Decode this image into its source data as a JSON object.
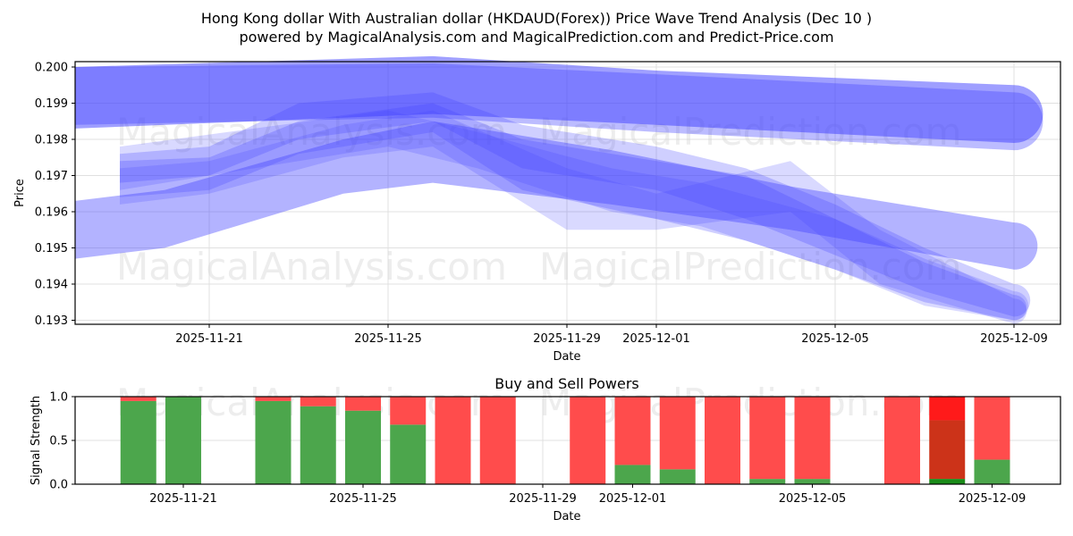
{
  "header": {
    "title": "Hong Kong dollar With Australian dollar (HKDAUD(Forex)) Price Wave Trend Analysis (Dec 10 )",
    "subtitle": "powered by MagicalAnalysis.com and MagicalPrediction.com and Predict-Price.com"
  },
  "watermarks": [
    "MagicalAnalysis.com",
    "MagicalPrediction.com"
  ],
  "colors": {
    "wave": "#4040ff",
    "buy": "#4ca64c",
    "sell": "#ff4c4c",
    "sell_strong": "#ff1a1a",
    "overlap": "#cc3319",
    "buy_dark": "#1a8c1a"
  },
  "chart_data": [
    {
      "type": "area",
      "title": "Price Wave Trend Analysis",
      "xlabel": "Date",
      "ylabel": "Price",
      "ylim": [
        0.1929,
        0.2002
      ],
      "yticks": [
        "0.193",
        "0.194",
        "0.195",
        "0.196",
        "0.197",
        "0.198",
        "0.199",
        "0.200"
      ],
      "xticks": [
        "2025-11-21",
        "2025-11-25",
        "2025-11-29",
        "2025-12-01",
        "2025-12-05",
        "2025-12-09"
      ],
      "grid": true,
      "series": [
        {
          "name": "upper-wave",
          "x": [
            "2025-11-18",
            "2025-11-26",
            "2025-12-01",
            "2025-12-09"
          ],
          "upper": [
            0.2,
            0.2003,
            0.1999,
            0.1995
          ],
          "lower": [
            0.1983,
            0.1987,
            0.1984,
            0.1979
          ],
          "opacity": 0.5
        },
        {
          "name": "upper-wave-2",
          "x": [
            "2025-11-18",
            "2025-11-26",
            "2025-12-01",
            "2025-12-09"
          ],
          "upper": [
            0.2,
            0.2001,
            0.1998,
            0.1993
          ],
          "lower": [
            0.1984,
            0.1986,
            0.1982,
            0.1977
          ],
          "opacity": 0.35
        },
        {
          "name": "lower-wave",
          "x": [
            "2025-11-18",
            "2025-11-20",
            "2025-11-24",
            "2025-11-26",
            "2025-11-30",
            "2025-12-04",
            "2025-12-09"
          ],
          "upper": [
            0.1963,
            0.1966,
            0.198,
            0.1985,
            0.1977,
            0.1967,
            0.1957
          ],
          "lower": [
            0.1947,
            0.195,
            0.1965,
            0.1968,
            0.1962,
            0.1955,
            0.1944
          ],
          "opacity": 0.4
        },
        {
          "name": "mid-wave-a",
          "x": [
            "2025-11-19",
            "2025-11-21",
            "2025-11-23",
            "2025-11-26",
            "2025-11-28",
            "2025-12-01",
            "2025-12-03",
            "2025-12-05",
            "2025-12-07",
            "2025-12-09"
          ],
          "upper": [
            0.1976,
            0.1978,
            0.199,
            0.1993,
            0.1984,
            0.1978,
            0.1972,
            0.1962,
            0.195,
            0.194
          ],
          "lower": [
            0.1968,
            0.197,
            0.198,
            0.1985,
            0.1972,
            0.1966,
            0.1958,
            0.1948,
            0.1938,
            0.1931
          ],
          "opacity": 0.25
        },
        {
          "name": "mid-wave-b",
          "x": [
            "2025-11-19",
            "2025-11-21",
            "2025-11-23",
            "2025-11-26",
            "2025-11-28",
            "2025-12-01",
            "2025-12-03",
            "2025-12-05",
            "2025-12-07",
            "2025-12-09"
          ],
          "upper": [
            0.1974,
            0.1975,
            0.1985,
            0.199,
            0.198,
            0.1974,
            0.197,
            0.1958,
            0.1946,
            0.1937
          ],
          "lower": [
            0.1964,
            0.1966,
            0.1976,
            0.1982,
            0.1966,
            0.1958,
            0.1952,
            0.1944,
            0.1935,
            0.193
          ],
          "opacity": 0.25
        },
        {
          "name": "mid-wave-c",
          "x": [
            "2025-11-19",
            "2025-11-21",
            "2025-11-24",
            "2025-11-26",
            "2025-11-29",
            "2025-12-01",
            "2025-12-04",
            "2025-12-06",
            "2025-12-09"
          ],
          "upper": [
            0.1972,
            0.1974,
            0.1984,
            0.1988,
            0.1972,
            0.1965,
            0.1974,
            0.1955,
            0.1936
          ],
          "lower": [
            0.1962,
            0.1965,
            0.1975,
            0.1978,
            0.1955,
            0.1955,
            0.196,
            0.194,
            0.1929
          ],
          "opacity": 0.2
        },
        {
          "name": "mid-wave-d",
          "x": [
            "2025-11-19",
            "2025-11-22",
            "2025-11-25",
            "2025-11-27",
            "2025-11-30",
            "2025-12-02",
            "2025-12-05",
            "2025-12-07",
            "2025-12-09"
          ],
          "upper": [
            0.1978,
            0.1983,
            0.1988,
            0.1982,
            0.1972,
            0.1968,
            0.1958,
            0.1947,
            0.1938
          ],
          "lower": [
            0.1966,
            0.1972,
            0.1978,
            0.1972,
            0.196,
            0.1956,
            0.1944,
            0.1934,
            0.193
          ],
          "opacity": 0.2
        }
      ]
    },
    {
      "type": "bar",
      "title": "Buy and Sell Powers",
      "xlabel": "Date",
      "ylabel": "Signal Strength",
      "ylim": [
        0.0,
        1.0
      ],
      "yticks": [
        "0.0",
        "0.5",
        "1.0"
      ],
      "xticks": [
        "2025-11-21",
        "2025-11-25",
        "2025-11-29",
        "2025-12-01",
        "2025-12-05",
        "2025-12-09"
      ],
      "categories": [
        "2025-11-20",
        "2025-11-21",
        "2025-11-23",
        "2025-11-24",
        "2025-11-25",
        "2025-11-26",
        "2025-11-27",
        "2025-11-28",
        "2025-11-30",
        "2025-12-01",
        "2025-12-02",
        "2025-12-03",
        "2025-12-04",
        "2025-12-05",
        "2025-12-07",
        "2025-12-08",
        "2025-12-09"
      ],
      "series": [
        {
          "name": "Buy",
          "values": [
            0.95,
            1.0,
            0.95,
            0.89,
            0.84,
            0.68,
            0.0,
            0.0,
            0.0,
            0.22,
            0.17,
            0.0,
            0.06,
            0.06,
            0.0,
            0.06,
            0.28
          ]
        },
        {
          "name": "Sell",
          "values": [
            0.05,
            0.0,
            0.05,
            0.11,
            0.16,
            0.32,
            1.0,
            1.0,
            1.0,
            0.78,
            0.83,
            1.0,
            0.94,
            0.94,
            1.0,
            0.94,
            0.72
          ]
        }
      ],
      "special": {
        "date": "2025-12-08",
        "overlap_top": 0.73
      }
    }
  ]
}
